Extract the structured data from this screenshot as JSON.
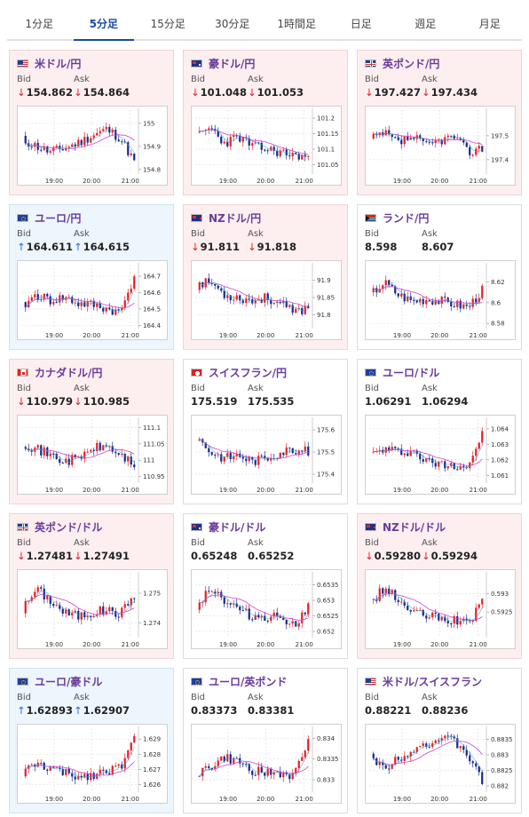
{
  "tabs": [
    {
      "label": "1分足",
      "active": false
    },
    {
      "label": "5分足",
      "active": true
    },
    {
      "label": "15分足",
      "active": false
    },
    {
      "label": "30分足",
      "active": false
    },
    {
      "label": "1時間足",
      "active": false
    },
    {
      "label": "日足",
      "active": false
    },
    {
      "label": "週足",
      "active": false
    },
    {
      "label": "月足",
      "active": false
    }
  ],
  "labels": {
    "bid": "Bid",
    "ask": "Ask"
  },
  "colors": {
    "up_candle": "#e8202a",
    "down_candle": "#1a2a8a",
    "ma_line": "#d040d0",
    "ma_short": "#2aa6c8",
    "down_bg": "#fdeff0",
    "up_bg": "#edf5fd"
  },
  "pairs": [
    {
      "name": "米ドル/円",
      "flag": "us",
      "change": "down",
      "bid": "154.862",
      "ask": "154.864",
      "chart_data": {
        "type": "candlestick",
        "x_ticks": [
          "19:00",
          "20:00",
          "21:00"
        ],
        "y_ticks": [
          "155",
          "154.9",
          "154.8"
        ],
        "ylim": [
          154.78,
          155.05
        ],
        "seed": 11,
        "trend": [
          0.55,
          0.45,
          0.35,
          0.42,
          0.5,
          0.62,
          0.72,
          0.58,
          0.2
        ]
      }
    },
    {
      "name": "豪ドル/円",
      "flag": "au",
      "change": "down",
      "bid": "101.048",
      "ask": "101.053",
      "chart_data": {
        "type": "candlestick",
        "x_ticks": [
          "19:00",
          "20:00",
          "21:00"
        ],
        "y_ticks": [
          "101.2",
          "101.15",
          "101.1",
          "101.05"
        ],
        "ylim": [
          101.02,
          101.22
        ],
        "seed": 23,
        "trend": [
          0.6,
          0.75,
          0.5,
          0.6,
          0.45,
          0.4,
          0.35,
          0.3,
          0.28
        ]
      }
    },
    {
      "name": "英ポンド/円",
      "flag": "gb",
      "change": "down",
      "bid": "197.427",
      "ask": "197.434",
      "chart_data": {
        "type": "candlestick",
        "x_ticks": [
          "19:00",
          "20:00",
          "21:00"
        ],
        "y_ticks": [
          "197.5",
          "197.4"
        ],
        "ylim": [
          197.34,
          197.6
        ],
        "seed": 37,
        "trend": [
          0.55,
          0.65,
          0.5,
          0.6,
          0.45,
          0.55,
          0.6,
          0.35,
          0.42
        ]
      }
    },
    {
      "name": "ユーロ/円",
      "flag": "eu",
      "change": "up",
      "bid": "164.611",
      "ask": "164.615",
      "chart_data": {
        "type": "candlestick",
        "x_ticks": [
          "19:00",
          "20:00",
          "21:00"
        ],
        "y_ticks": [
          "164.7",
          "164.6",
          "164.5",
          "164.4"
        ],
        "ylim": [
          164.38,
          164.76
        ],
        "seed": 41,
        "trend": [
          0.35,
          0.55,
          0.45,
          0.5,
          0.4,
          0.38,
          0.32,
          0.25,
          0.85
        ]
      }
    },
    {
      "name": "NZドル/円",
      "flag": "nz",
      "change": "down",
      "bid": "91.811",
      "ask": "91.818",
      "chart_data": {
        "type": "candlestick",
        "x_ticks": [
          "19:00",
          "20:00",
          "21:00"
        ],
        "y_ticks": [
          "91.9",
          "91.85",
          "91.8"
        ],
        "ylim": [
          91.76,
          91.94
        ],
        "seed": 53,
        "trend": [
          0.7,
          0.75,
          0.55,
          0.5,
          0.45,
          0.5,
          0.4,
          0.25,
          0.35
        ]
      }
    },
    {
      "name": "ランド/円",
      "flag": "za",
      "change": "neutral",
      "bid": "8.598",
      "ask": "8.607",
      "chart_data": {
        "type": "candlestick",
        "x_ticks": [
          "19:00",
          "20:00",
          "21:00"
        ],
        "y_ticks": [
          "8.62",
          "8.6",
          "8.58"
        ],
        "ylim": [
          8.575,
          8.635
        ],
        "seed": 67,
        "trend": [
          0.55,
          0.75,
          0.55,
          0.45,
          0.48,
          0.45,
          0.4,
          0.35,
          0.62
        ]
      }
    },
    {
      "name": "カナダドル/円",
      "flag": "ca",
      "change": "down",
      "bid": "110.979",
      "ask": "110.985",
      "chart_data": {
        "type": "candlestick",
        "x_ticks": [
          "19:00",
          "20:00",
          "21:00"
        ],
        "y_ticks": [
          "111.1",
          "111.05",
          "111",
          "110.95"
        ],
        "ylim": [
          110.93,
          111.12
        ],
        "seed": 71,
        "trend": [
          0.65,
          0.55,
          0.45,
          0.35,
          0.4,
          0.55,
          0.6,
          0.45,
          0.3
        ]
      }
    },
    {
      "name": "スイスフラン/円",
      "flag": "ch",
      "change": "neutral",
      "bid": "175.519",
      "ask": "175.535",
      "chart_data": {
        "type": "candlestick",
        "x_ticks": [
          "19:00",
          "20:00",
          "21:00"
        ],
        "y_ticks": [
          "175.6",
          "175.5",
          "175.4"
        ],
        "ylim": [
          175.36,
          175.64
        ],
        "seed": 83,
        "trend": [
          0.75,
          0.5,
          0.4,
          0.45,
          0.35,
          0.4,
          0.5,
          0.55,
          0.5
        ]
      }
    },
    {
      "name": "ユーロ/ドル",
      "flag": "eu",
      "change": "neutral",
      "bid": "1.06291",
      "ask": "1.06294",
      "chart_data": {
        "type": "candlestick",
        "x_ticks": [
          "19:00",
          "20:00",
          "21:00"
        ],
        "y_ticks": [
          "1.064",
          "1.063",
          "1.062",
          "1.061"
        ],
        "ylim": [
          1.0605,
          1.0645
        ],
        "seed": 97,
        "trend": [
          0.45,
          0.55,
          0.5,
          0.52,
          0.35,
          0.3,
          0.3,
          0.28,
          0.8
        ]
      }
    },
    {
      "name": "英ポンド/ドル",
      "flag": "gb",
      "change": "down",
      "bid": "1.27481",
      "ask": "1.27491",
      "chart_data": {
        "type": "candlestick",
        "x_ticks": [
          "19:00",
          "20:00",
          "21:00"
        ],
        "y_ticks": [
          "1.275",
          "1.274"
        ],
        "ylim": [
          1.2735,
          1.2756
        ],
        "seed": 101,
        "trend": [
          0.45,
          0.78,
          0.6,
          0.4,
          0.35,
          0.4,
          0.45,
          0.38,
          0.7
        ]
      }
    },
    {
      "name": "豪ドル/ドル",
      "flag": "au",
      "change": "neutral",
      "bid": "0.65248",
      "ask": "0.65252",
      "chart_data": {
        "type": "candlestick",
        "x_ticks": [
          "19:00",
          "20:00",
          "21:00"
        ],
        "y_ticks": [
          "0.6535",
          "0.653",
          "0.6525",
          "0.652"
        ],
        "ylim": [
          0.6518,
          0.6538
        ],
        "seed": 113,
        "trend": [
          0.5,
          0.82,
          0.6,
          0.45,
          0.35,
          0.33,
          0.35,
          0.2,
          0.48
        ]
      }
    },
    {
      "name": "NZドル/ドル",
      "flag": "nz",
      "change": "down",
      "bid": "0.59280",
      "ask": "0.59294",
      "chart_data": {
        "type": "candlestick",
        "x_ticks": [
          "19:00",
          "20:00",
          "21:00"
        ],
        "y_ticks": [
          "0.593",
          "0.5925"
        ],
        "ylim": [
          0.5918,
          0.5935
        ],
        "seed": 127,
        "trend": [
          0.55,
          0.8,
          0.6,
          0.4,
          0.35,
          0.3,
          0.28,
          0.2,
          0.62
        ]
      }
    },
    {
      "name": "ユーロ/豪ドル",
      "flag": "eu",
      "change": "up",
      "bid": "1.62893",
      "ask": "1.62907",
      "chart_data": {
        "type": "candlestick",
        "x_ticks": [
          "19:00",
          "20:00",
          "21:00"
        ],
        "y_ticks": [
          "1.629",
          "1.628",
          "1.627",
          "1.626"
        ],
        "ylim": [
          1.6255,
          1.6296
        ],
        "seed": 131,
        "trend": [
          0.3,
          0.45,
          0.38,
          0.3,
          0.25,
          0.28,
          0.35,
          0.4,
          0.85
        ]
      }
    },
    {
      "name": "ユーロ/英ポンド",
      "flag": "eu",
      "change": "neutral",
      "bid": "0.83373",
      "ask": "0.83381",
      "chart_data": {
        "type": "candlestick",
        "x_ticks": [
          "19:00",
          "20:00",
          "21:00"
        ],
        "y_ticks": [
          "0.834",
          "0.8335",
          "0.833"
        ],
        "ylim": [
          0.8327,
          0.8342
        ],
        "seed": 149,
        "trend": [
          0.3,
          0.4,
          0.55,
          0.48,
          0.35,
          0.3,
          0.3,
          0.25,
          0.82
        ]
      }
    },
    {
      "name": "米ドル/スイスフラン",
      "flag": "us",
      "change": "neutral",
      "bid": "0.88221",
      "ask": "0.88236",
      "chart_data": {
        "type": "candlestick",
        "x_ticks": [
          "19:00",
          "20:00",
          "21:00"
        ],
        "y_ticks": [
          "0.8835",
          "0.883",
          "0.8825",
          "0.882"
        ],
        "ylim": [
          0.8818,
          0.8838
        ],
        "seed": 151,
        "trend": [
          0.55,
          0.4,
          0.55,
          0.7,
          0.78,
          0.85,
          0.82,
          0.6,
          0.15
        ]
      }
    }
  ]
}
